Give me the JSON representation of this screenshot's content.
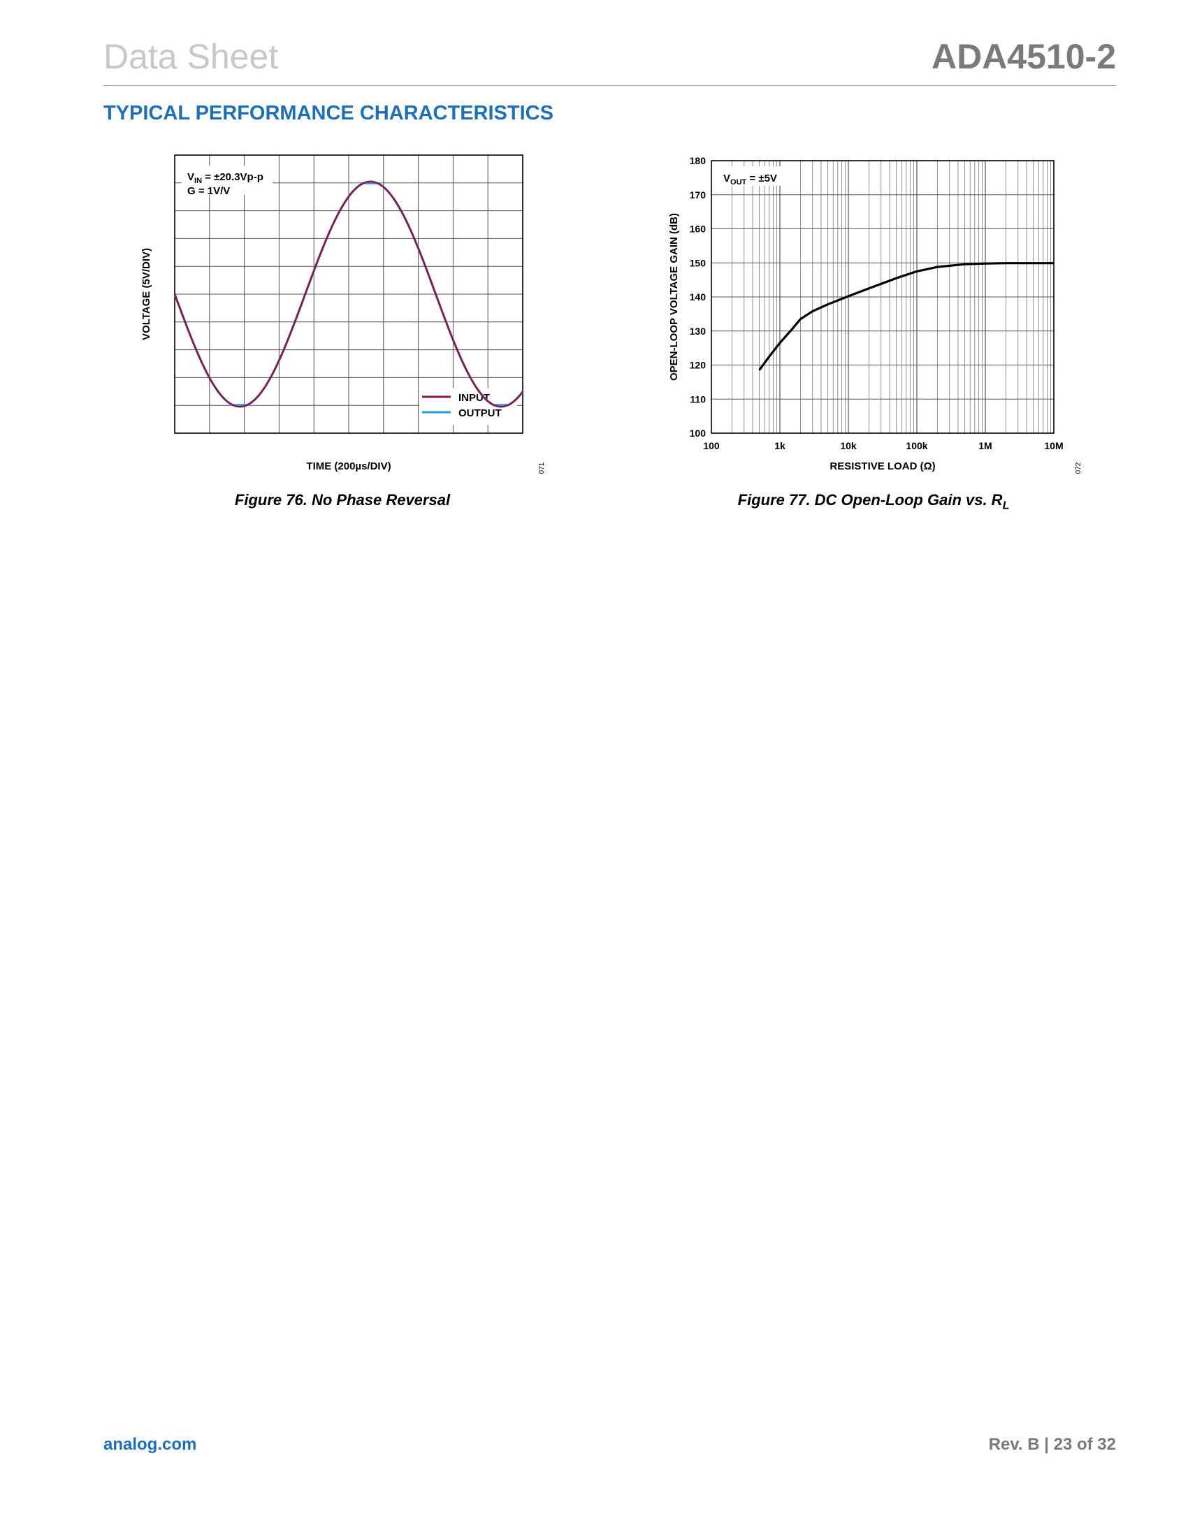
{
  "header": {
    "left": "Data Sheet",
    "right": "ADA4510-2"
  },
  "section_title": "TYPICAL PERFORMANCE CHARACTERISTICS",
  "footer": {
    "left": "analog.com",
    "right": "Rev. B | 23 of 32"
  },
  "figure76": {
    "caption": "Figure 76. No Phase Reversal",
    "code": "071",
    "annot_line1_main": "V",
    "annot_line1_sub": "IN",
    "annot_line1_rest": " = ±20.3Vp-p",
    "annot_line2": "G = 1V/V",
    "colors": {
      "input": "#8b1a4a",
      "output": "#1fa0d8"
    }
  },
  "figure77": {
    "caption_main": "Figure 77. DC Open-Loop Gain vs. R",
    "caption_sub": "L",
    "code": "072",
    "annot_main": "V",
    "annot_sub": "OUT",
    "annot_rest": " = ±5V"
  },
  "chart_data": [
    {
      "type": "line",
      "xlabel": "TIME (200µs/DIV)",
      "ylabel": "VOLTAGE (5V/DIV)",
      "grid": true,
      "divisions": {
        "x": 10,
        "y": 10
      },
      "legend": {
        "placement": "bottom-right",
        "entries": [
          "INPUT",
          "OUTPUT"
        ]
      },
      "series": [
        {
          "name": "INPUT",
          "waveform": "sine",
          "amplitude_div": 4.05,
          "period_div": 7.5,
          "phase_start": "zero-crossing, falling"
        },
        {
          "name": "OUTPUT",
          "waveform": "sine",
          "amplitude_div": 4.05,
          "period_div": 7.5,
          "phase_start": "zero-crossing, falling"
        }
      ]
    },
    {
      "type": "line",
      "xlabel": "RESISTIVE LOAD (Ω)",
      "ylabel": "OPEN-LOOP VOLTAGE GAIN (dB)",
      "xscale": "log",
      "xlim": [
        100,
        10000000
      ],
      "ylim": [
        100,
        180
      ],
      "x_ticks": [
        "100",
        "1k",
        "10k",
        "100k",
        "1M",
        "10M"
      ],
      "y_ticks": [
        "100",
        "110",
        "120",
        "130",
        "140",
        "150",
        "160",
        "170",
        "180"
      ],
      "grid": true,
      "series": [
        {
          "x": [
            500,
            700,
            1000,
            1500,
            2000,
            3000,
            5000,
            10000,
            20000,
            50000,
            100000,
            200000,
            500000,
            1000000,
            2000000,
            5000000,
            10000000
          ],
          "y": [
            118.5,
            122.5,
            126.5,
            130.5,
            133.5,
            135.8,
            137.8,
            140.2,
            142.5,
            145.5,
            147.5,
            148.8,
            149.6,
            149.8,
            149.9,
            149.9,
            149.9
          ]
        }
      ]
    }
  ]
}
